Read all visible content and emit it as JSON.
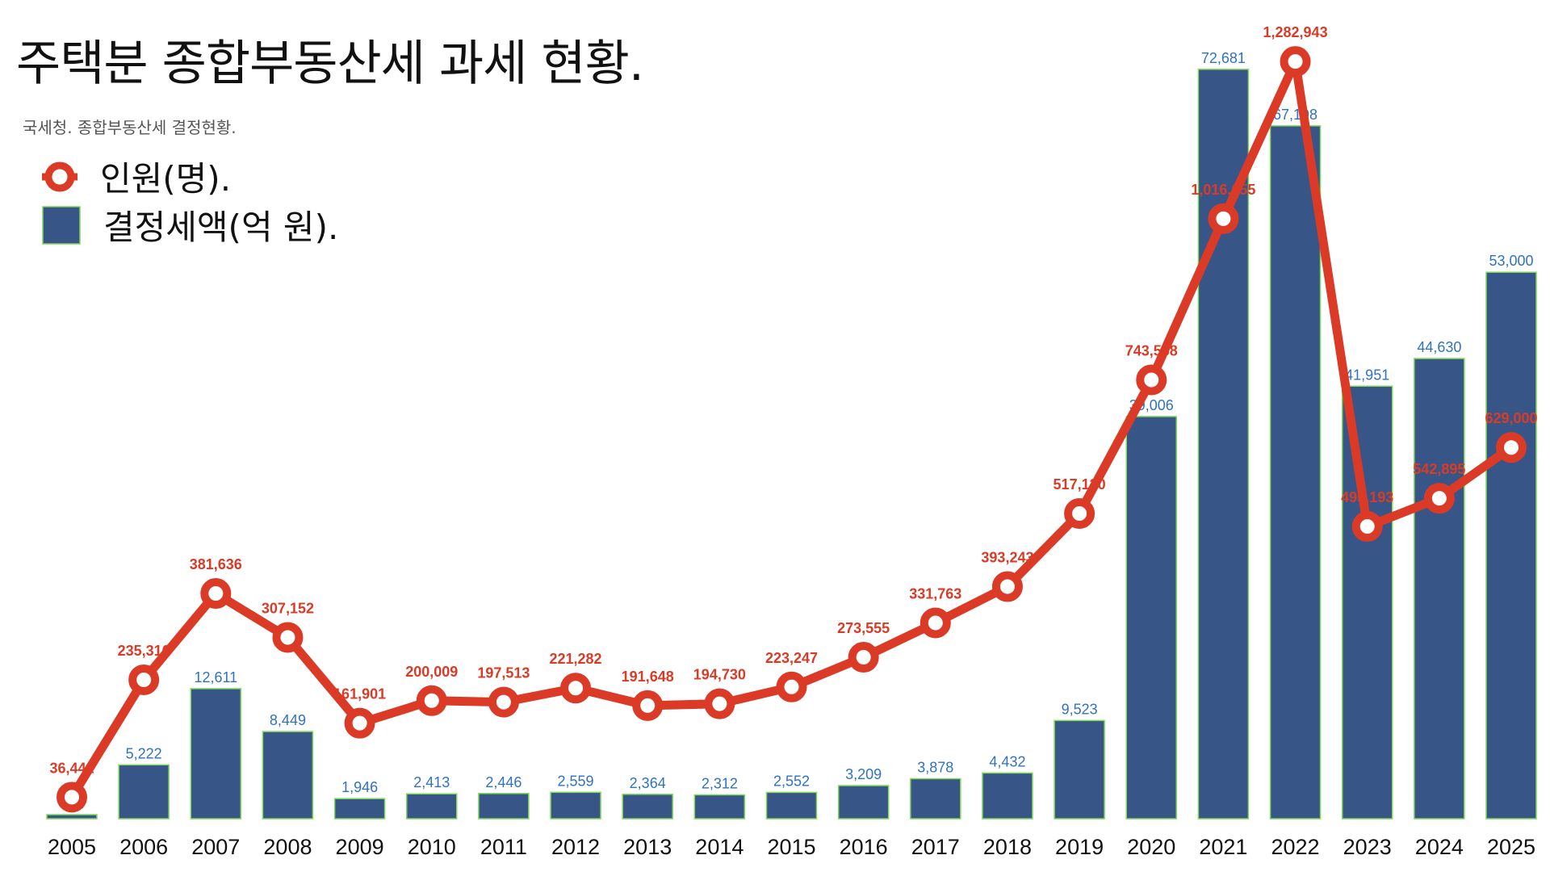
{
  "chart_data": {
    "type": "bar+line",
    "title": "주택분 종합부동산세 과세 현황.",
    "subtitle": "국세청. 종합부동산세 결정현황.",
    "categories": [
      "2005",
      "2006",
      "2007",
      "2008",
      "2009",
      "2010",
      "2011",
      "2012",
      "2013",
      "2014",
      "2015",
      "2016",
      "2017",
      "2018",
      "2019",
      "2020",
      "2021",
      "2022",
      "2023",
      "2024",
      "2025"
    ],
    "series": [
      {
        "name": "인원(명).",
        "type": "line",
        "color": "#DB3B26",
        "values": [
          36441,
          235316,
          381636,
          307152,
          161901,
          200009,
          197513,
          221282,
          191648,
          194730,
          223247,
          273555,
          331763,
          393243,
          517120,
          743568,
          1016655,
          1282943,
          495193,
          542895,
          629000
        ]
      },
      {
        "name": "결정세액(억 원).",
        "type": "bar",
        "color": "#375687",
        "label_color": "#2F72C4",
        "values": [
          392,
          5222,
          12611,
          8449,
          1946,
          2413,
          2446,
          2559,
          2364,
          2312,
          2552,
          3209,
          3878,
          4432,
          9523,
          39006,
          72681,
          67198,
          41951,
          44630,
          53000
        ]
      }
    ],
    "bar_ylim": [
      0,
      80000
    ],
    "line_ylim": [
      0,
      1400000
    ],
    "grid": false,
    "legend_position": "top-left"
  }
}
